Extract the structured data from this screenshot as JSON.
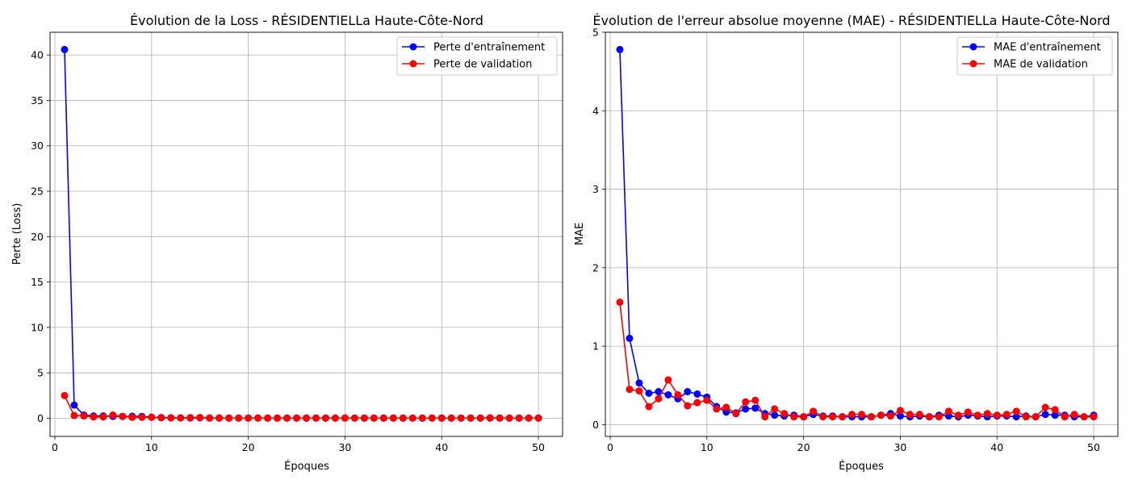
{
  "chart_data": [
    {
      "type": "line",
      "title": "Évolution de la Loss - RÉSIDENTIELLa Haute-Côte-Nord",
      "xlabel": "Époques",
      "ylabel": "Perte (Loss)",
      "xlim": [
        -0.5,
        52.5
      ],
      "ylim": [
        -2,
        42.5
      ],
      "xticks": [
        0,
        10,
        20,
        30,
        40,
        50
      ],
      "yticks": [
        0,
        5,
        10,
        15,
        20,
        25,
        30,
        35,
        40
      ],
      "grid": true,
      "legend_position": "upper-right",
      "x": [
        1,
        2,
        3,
        4,
        5,
        6,
        7,
        8,
        9,
        10,
        11,
        12,
        13,
        14,
        15,
        16,
        17,
        18,
        19,
        20,
        21,
        22,
        23,
        24,
        25,
        26,
        27,
        28,
        29,
        30,
        31,
        32,
        33,
        34,
        35,
        36,
        37,
        38,
        39,
        40,
        41,
        42,
        43,
        44,
        45,
        46,
        47,
        48,
        49,
        50
      ],
      "series": [
        {
          "name": "Perte d'entraînement",
          "color": "#0000ff",
          "values": [
            40.6,
            1.45,
            0.35,
            0.25,
            0.25,
            0.2,
            0.2,
            0.22,
            0.2,
            0.12,
            0.08,
            0.05,
            0.04,
            0.03,
            0.05,
            0.03,
            0.02,
            0.02,
            0.02,
            0.02,
            0.02,
            0.02,
            0.02,
            0.02,
            0.02,
            0.02,
            0.02,
            0.02,
            0.02,
            0.02,
            0.02,
            0.02,
            0.02,
            0.02,
            0.02,
            0.02,
            0.02,
            0.02,
            0.02,
            0.02,
            0.02,
            0.02,
            0.02,
            0.02,
            0.02,
            0.02,
            0.02,
            0.02,
            0.02,
            0.02
          ]
        },
        {
          "name": "Perte de validation",
          "color": "#ff0000",
          "values": [
            2.5,
            0.3,
            0.25,
            0.15,
            0.15,
            0.35,
            0.2,
            0.1,
            0.1,
            0.1,
            0.05,
            0.04,
            0.03,
            0.07,
            0.08,
            0.02,
            0.04,
            0.02,
            0.02,
            0.02,
            0.03,
            0.02,
            0.02,
            0.02,
            0.02,
            0.02,
            0.02,
            0.02,
            0.02,
            0.03,
            0.02,
            0.02,
            0.02,
            0.02,
            0.02,
            0.02,
            0.02,
            0.02,
            0.02,
            0.02,
            0.02,
            0.02,
            0.02,
            0.02,
            0.05,
            0.03,
            0.02,
            0.02,
            0.02,
            0.02
          ]
        }
      ]
    },
    {
      "type": "line",
      "title": "Évolution de l'erreur absolue moyenne (MAE) - RÉSIDENTIELLa Haute-Côte-Nord",
      "xlabel": "Époques",
      "ylabel": "MAE",
      "xlim": [
        -0.5,
        52.5
      ],
      "ylim": [
        -0.15,
        5.0
      ],
      "xticks": [
        0,
        10,
        20,
        30,
        40,
        50
      ],
      "yticks": [
        0,
        1,
        2,
        3,
        4,
        5
      ],
      "grid": true,
      "legend_position": "upper-right",
      "x": [
        1,
        2,
        3,
        4,
        5,
        6,
        7,
        8,
        9,
        10,
        11,
        12,
        13,
        14,
        15,
        16,
        17,
        18,
        19,
        20,
        21,
        22,
        23,
        24,
        25,
        26,
        27,
        28,
        29,
        30,
        31,
        32,
        33,
        34,
        35,
        36,
        37,
        38,
        39,
        40,
        41,
        42,
        43,
        44,
        45,
        46,
        47,
        48,
        49,
        50
      ],
      "series": [
        {
          "name": "MAE d'entraînement",
          "color": "#0000ff",
          "values": [
            4.78,
            1.1,
            0.53,
            0.4,
            0.42,
            0.38,
            0.33,
            0.42,
            0.39,
            0.35,
            0.23,
            0.16,
            0.15,
            0.2,
            0.21,
            0.14,
            0.12,
            0.11,
            0.12,
            0.1,
            0.13,
            0.11,
            0.11,
            0.1,
            0.1,
            0.1,
            0.1,
            0.12,
            0.14,
            0.11,
            0.1,
            0.11,
            0.1,
            0.12,
            0.11,
            0.1,
            0.12,
            0.11,
            0.1,
            0.11,
            0.11,
            0.1,
            0.11,
            0.1,
            0.13,
            0.12,
            0.12,
            0.1,
            0.1,
            0.12
          ]
        },
        {
          "name": "MAE de validation",
          "color": "#ff0000",
          "values": [
            1.56,
            0.45,
            0.43,
            0.23,
            0.33,
            0.57,
            0.38,
            0.24,
            0.28,
            0.31,
            0.2,
            0.22,
            0.14,
            0.29,
            0.31,
            0.1,
            0.2,
            0.14,
            0.1,
            0.1,
            0.17,
            0.1,
            0.1,
            0.1,
            0.13,
            0.13,
            0.1,
            0.12,
            0.11,
            0.18,
            0.13,
            0.13,
            0.1,
            0.1,
            0.17,
            0.12,
            0.16,
            0.12,
            0.14,
            0.12,
            0.13,
            0.17,
            0.1,
            0.1,
            0.22,
            0.19,
            0.1,
            0.13,
            0.1,
            0.1
          ]
        }
      ]
    }
  ]
}
